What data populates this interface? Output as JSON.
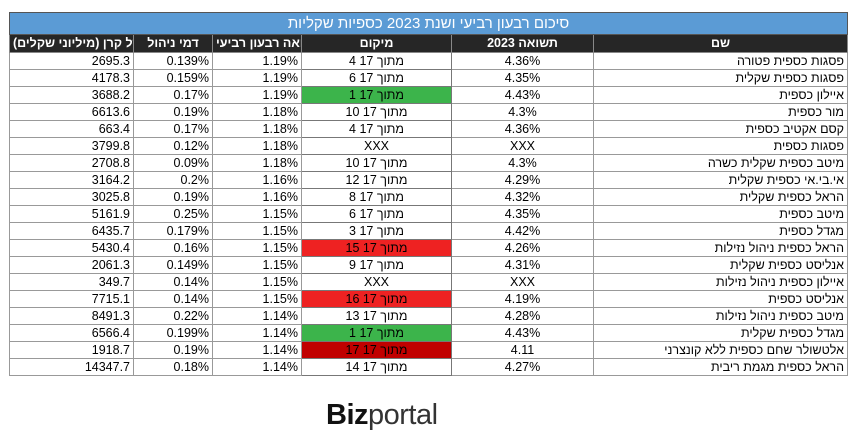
{
  "table": {
    "title": "סיכום רבעון רביעי ושנת 2023 כספיות שקליות",
    "headers": {
      "size": "גודל קרן (מיליוני שקלים)",
      "fee": "דמי ניהול",
      "q_return": "תשואה רבעון רביעי",
      "rank": "מיקום",
      "y_return": "תשואה 2023",
      "name": "שם"
    },
    "rows": [
      {
        "name": "פסגות כספית פטורה",
        "y_return": "4.36%",
        "rank": "4 מתוך 17",
        "q_return": "1.19%",
        "fee": "0.139%",
        "size": "2695.3",
        "rank_bg": ""
      },
      {
        "name": "פסגות כספית שקלית",
        "y_return": "4.35%",
        "rank": "6 מתוך 17",
        "q_return": "1.19%",
        "fee": "0.159%",
        "size": "4178.3",
        "rank_bg": ""
      },
      {
        "name": "איילון כספית",
        "y_return": "4.43%",
        "rank": "1 מתוך 17",
        "q_return": "1.19%",
        "fee": "0.17%",
        "size": "3688.2",
        "rank_bg": "#3cb44b"
      },
      {
        "name": "מור כספית",
        "y_return": "4.3%",
        "rank": "10 מתוך 17",
        "q_return": "1.18%",
        "fee": "0.19%",
        "size": "6613.6",
        "rank_bg": ""
      },
      {
        "name": "קסם אקטיב כספית",
        "y_return": "4.36%",
        "rank": "4 מתוך 17",
        "q_return": "1.18%",
        "fee": "0.17%",
        "size": "663.4",
        "rank_bg": ""
      },
      {
        "name": "פסגות כספית",
        "y_return": "XXX",
        "rank": "XXX",
        "q_return": "1.18%",
        "fee": "0.12%",
        "size": "3799.8",
        "rank_bg": ""
      },
      {
        "name": "מיטב כספית שקלית כשרה",
        "y_return": "4.3%",
        "rank": "10 מתוך 17",
        "q_return": "1.18%",
        "fee": "0.09%",
        "size": "2708.8",
        "rank_bg": ""
      },
      {
        "name": "אי.בי.אי כספית שקלית",
        "y_return": "4.29%",
        "rank": "12 מתוך 17",
        "q_return": "1.16%",
        "fee": "0.2%",
        "size": "3164.2",
        "rank_bg": ""
      },
      {
        "name": "הראל כספית שקלית",
        "y_return": "4.32%",
        "rank": "8 מתוך 17",
        "q_return": "1.16%",
        "fee": "0.19%",
        "size": "3025.8",
        "rank_bg": ""
      },
      {
        "name": "מיטב כספית",
        "y_return": "4.35%",
        "rank": "6 מתוך 17",
        "q_return": "1.15%",
        "fee": "0.25%",
        "size": "5161.9",
        "rank_bg": ""
      },
      {
        "name": "מגדל כספית",
        "y_return": "4.42%",
        "rank": "3 מתוך 17",
        "q_return": "1.15%",
        "fee": "0.179%",
        "size": "6435.7",
        "rank_bg": ""
      },
      {
        "name": "הראל כספית ניהול נזילות",
        "y_return": "4.26%",
        "rank": "15 מתוך 17",
        "q_return": "1.15%",
        "fee": "0.16%",
        "size": "5430.4",
        "rank_bg": "#ee2222"
      },
      {
        "name": "אנליסט כספית שקלית",
        "y_return": "4.31%",
        "rank": "9 מתוך 17",
        "q_return": "1.15%",
        "fee": "0.149%",
        "size": "2061.3",
        "rank_bg": ""
      },
      {
        "name": "איילון כספית ניהול נזילות",
        "y_return": "XXX",
        "rank": "XXX",
        "q_return": "1.15%",
        "fee": "0.14%",
        "size": "349.7",
        "rank_bg": ""
      },
      {
        "name": "אנליסט כספית",
        "y_return": "4.19%",
        "rank": "16 מתוך 17",
        "q_return": "1.15%",
        "fee": "0.14%",
        "size": "7715.1",
        "rank_bg": "#ee2222"
      },
      {
        "name": "מיטב כספית ניהול נזילות",
        "y_return": "4.28%",
        "rank": "13 מתוך 17",
        "q_return": "1.14%",
        "fee": "0.22%",
        "size": "8491.3",
        "rank_bg": ""
      },
      {
        "name": "מגדל כספית שקלית",
        "y_return": "4.43%",
        "rank": "1 מתוך 17",
        "q_return": "1.14%",
        "fee": "0.199%",
        "size": "6566.4",
        "rank_bg": "#3cb44b"
      },
      {
        "name": "אלטשולר שחם כספית ללא קונצרני",
        "y_return": "4.11",
        "rank": "17 מתוך 17",
        "q_return": "1.14%",
        "fee": "0.19%",
        "size": "1918.7",
        "rank_bg": "#c00000"
      },
      {
        "name": "הראל כספית מגמת ריבית",
        "y_return": "4.27%",
        "rank": "14 מתוך 17",
        "q_return": "1.14%",
        "fee": "0.18%",
        "size": "14347.7",
        "rank_bg": ""
      }
    ]
  },
  "logo": {
    "part1": "Biz",
    "part2": "portal"
  }
}
